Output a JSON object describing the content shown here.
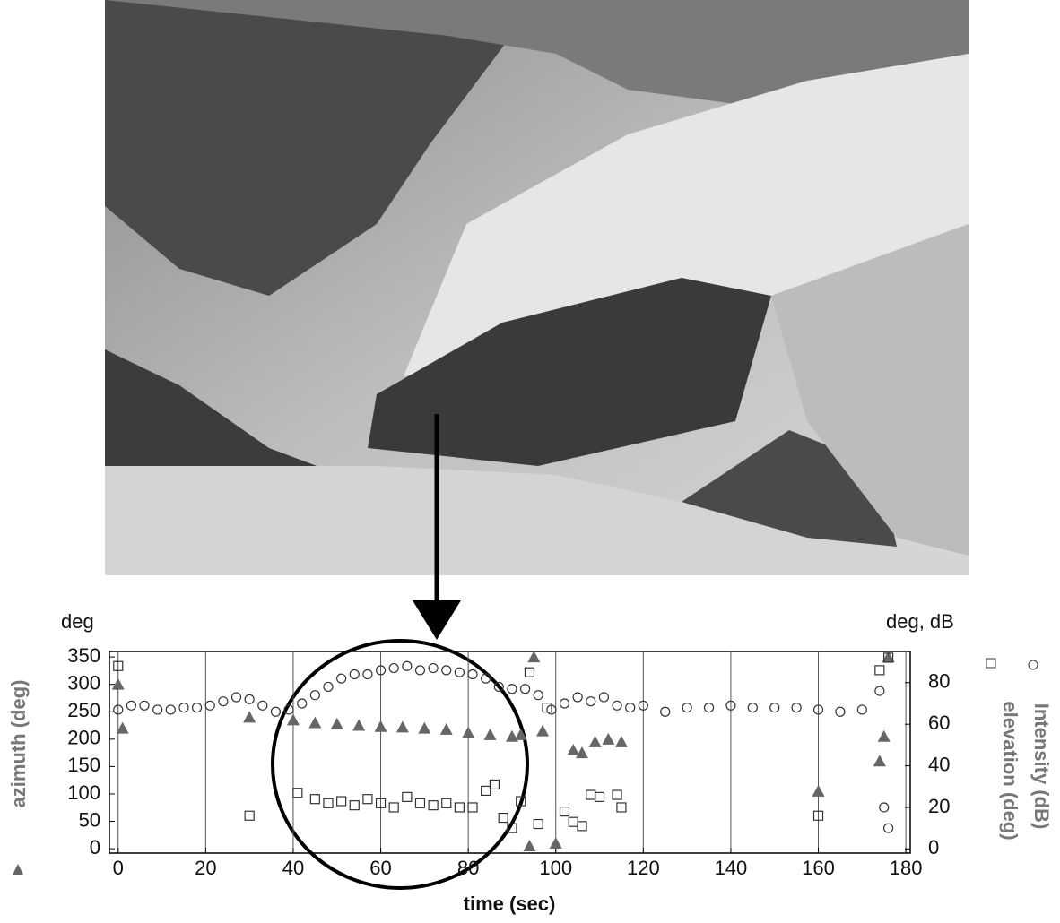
{
  "chart_data": {
    "type": "scatter",
    "x_label": "time (sec)",
    "y_label": "deg",
    "y2_label": "deg, dB",
    "xlim": [
      -2,
      181
    ],
    "xticks": [
      0,
      20,
      40,
      60,
      80,
      100,
      120,
      140,
      160,
      180
    ],
    "ylim": [
      -8,
      360
    ],
    "yticks": [
      0,
      50,
      100,
      150,
      200,
      250,
      300,
      350
    ],
    "y2lim": [
      -2,
      95
    ],
    "y2ticks": [
      0,
      20,
      40,
      60,
      80
    ],
    "grid": "x",
    "series": [
      {
        "name": "azimuth (deg)",
        "color": "#666666",
        "marker": "triangle",
        "axis": "y",
        "x": [
          0,
          1,
          30,
          40,
          45,
          50,
          55,
          60,
          65,
          70,
          75,
          80,
          85,
          90,
          92,
          94,
          95,
          97,
          100,
          104,
          106,
          109,
          112,
          115,
          160,
          174,
          175,
          176
        ],
        "values": [
          300,
          220,
          240,
          235,
          230,
          228,
          225,
          223,
          222,
          220,
          218,
          212,
          208,
          205,
          208,
          5,
          350,
          215,
          10,
          180,
          175,
          195,
          200,
          195,
          105,
          160,
          205,
          350
        ]
      },
      {
        "name": "elevation (deg)",
        "color": "#333333",
        "marker": "square",
        "axis": "y2",
        "x": [
          0,
          30,
          41,
          45,
          48,
          51,
          54,
          57,
          60,
          63,
          66,
          69,
          72,
          75,
          78,
          81,
          84,
          86,
          88,
          90,
          92,
          94,
          96,
          98,
          102,
          104,
          106,
          108,
          110,
          114,
          115,
          160,
          174,
          176
        ],
        "values": [
          88,
          16,
          27,
          24,
          22,
          23,
          21,
          24,
          22,
          20,
          25,
          22,
          21,
          22,
          20,
          20,
          28,
          31,
          15,
          10,
          23,
          85,
          12,
          68,
          18,
          13,
          11,
          26,
          25,
          26,
          20,
          16,
          86,
          92
        ]
      },
      {
        "name": "Intensity (dB)",
        "color": "#333333",
        "marker": "circle",
        "axis": "y2",
        "x": [
          0,
          3,
          6,
          9,
          12,
          15,
          18,
          21,
          24,
          27,
          30,
          33,
          36,
          39,
          42,
          45,
          48,
          51,
          54,
          57,
          60,
          63,
          66,
          69,
          72,
          75,
          78,
          81,
          84,
          87,
          90,
          93,
          96,
          99,
          102,
          105,
          108,
          111,
          114,
          117,
          120,
          125,
          130,
          135,
          140,
          145,
          150,
          155,
          160,
          165,
          170,
          174,
          175,
          176
        ],
        "values": [
          67,
          69,
          69,
          67,
          67,
          68,
          68,
          69,
          71,
          73,
          72,
          69,
          66,
          67,
          70,
          74,
          78,
          82,
          84,
          84,
          86,
          87,
          88,
          86,
          87,
          86,
          85,
          84,
          82,
          78,
          77,
          77,
          74,
          67,
          70,
          73,
          71,
          73,
          69,
          68,
          69,
          66,
          68,
          68,
          69,
          68,
          68,
          68,
          67,
          66,
          67,
          76,
          20,
          10
        ]
      }
    ]
  }
}
